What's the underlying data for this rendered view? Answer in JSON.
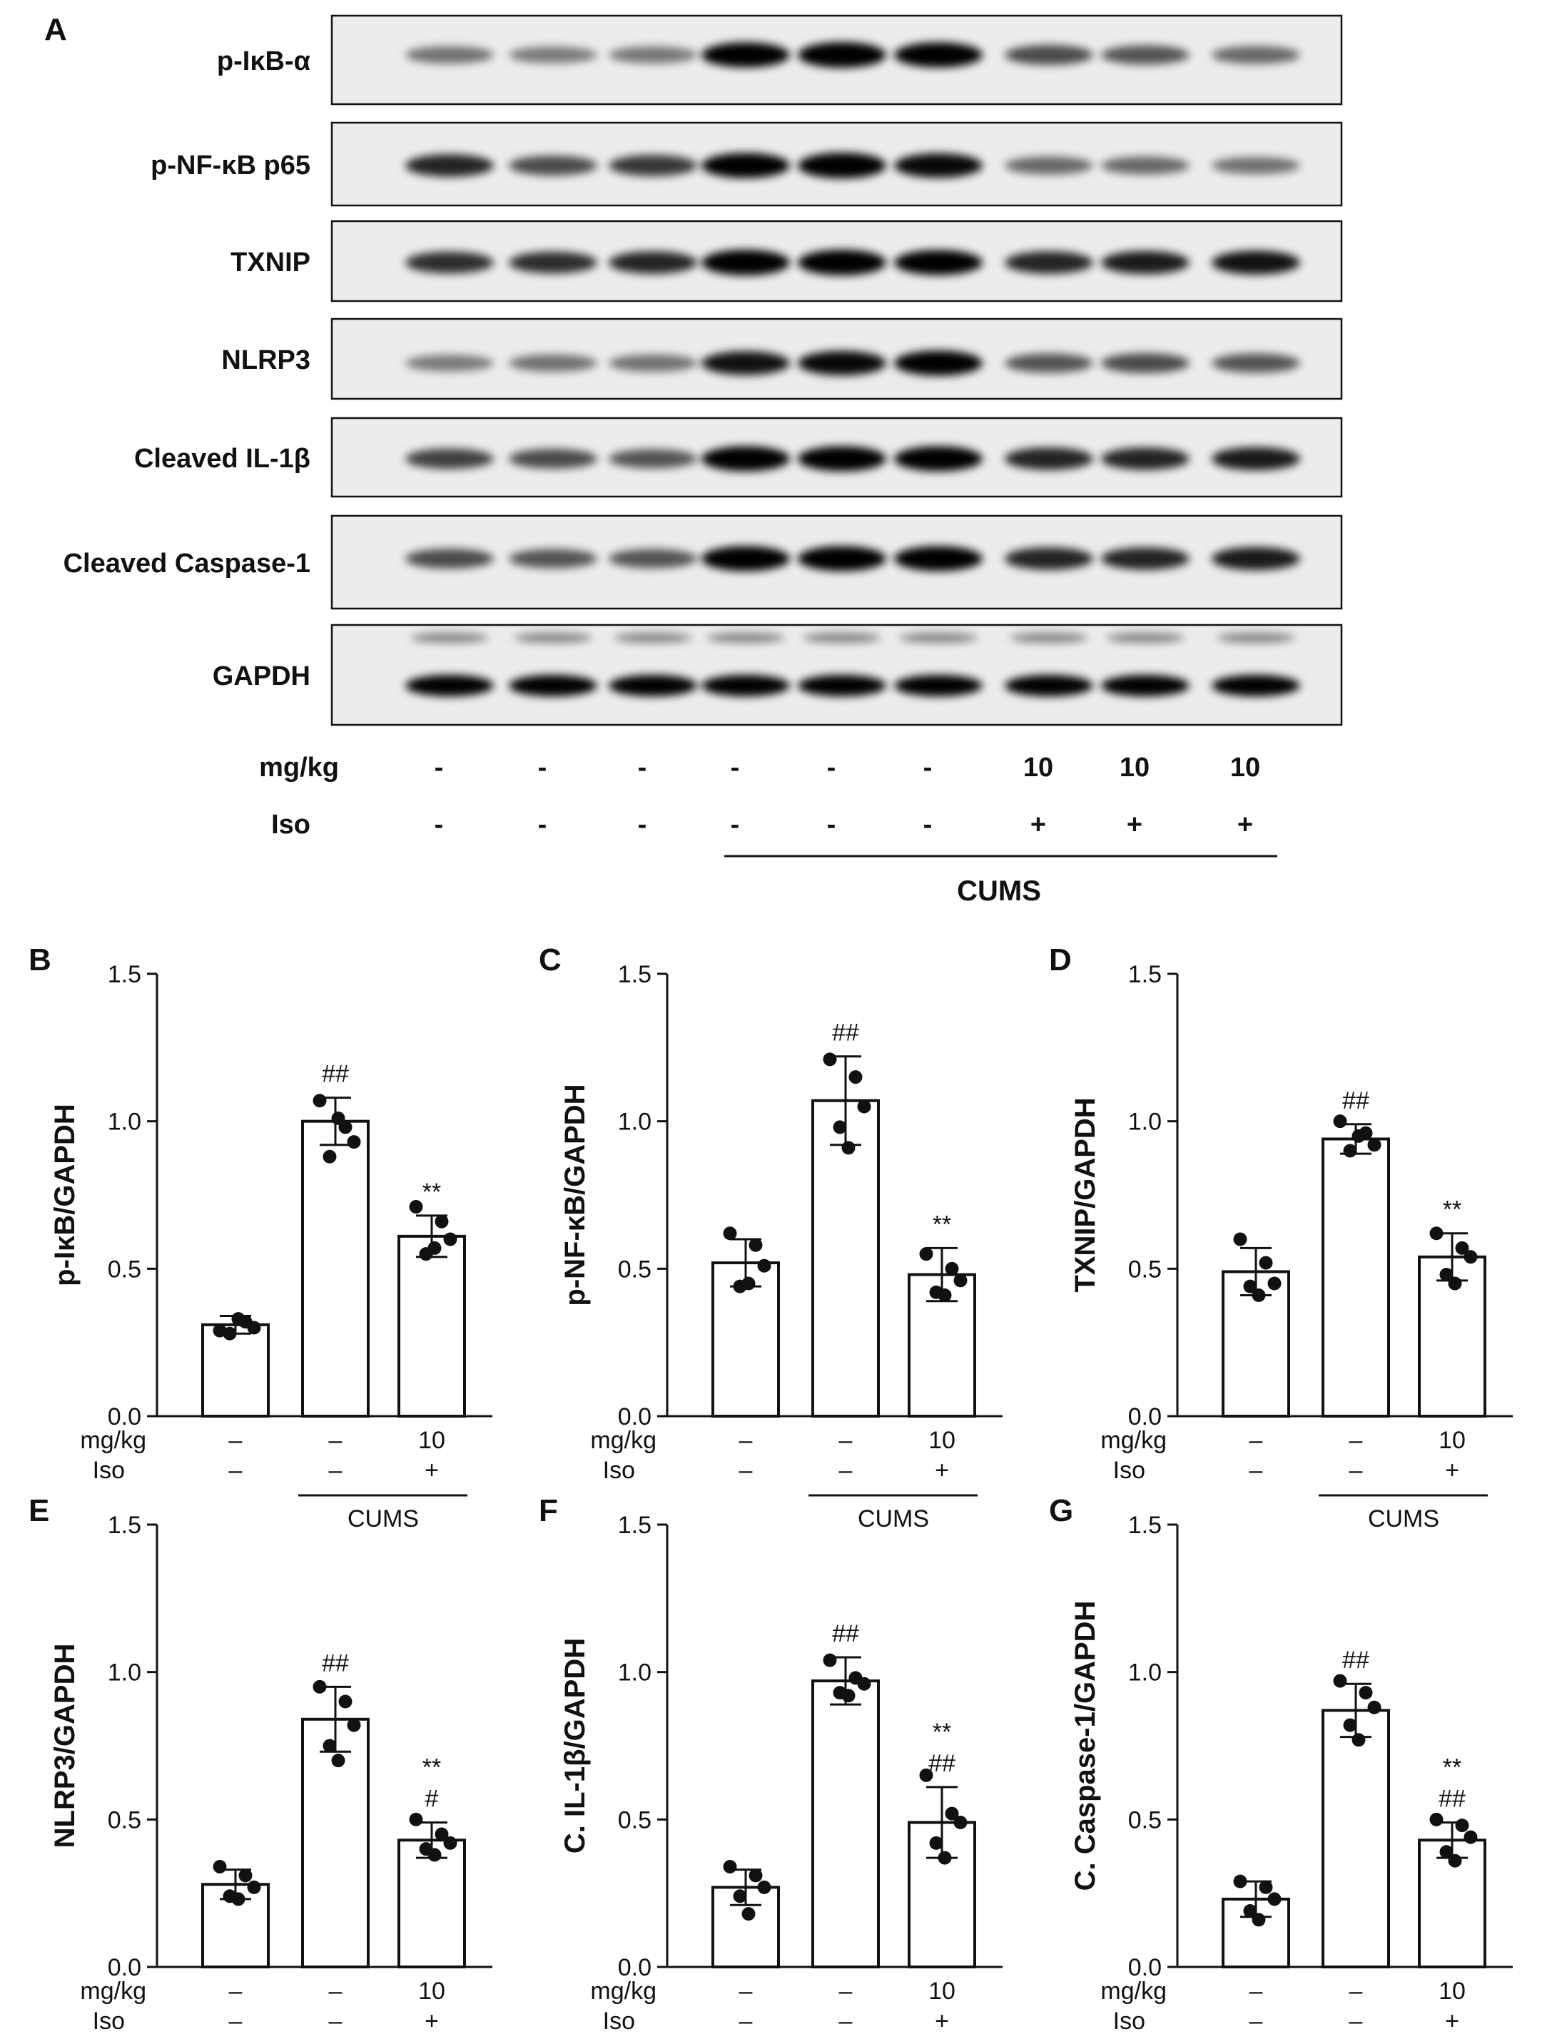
{
  "panel_letters": {
    "a": "A",
    "b": "B",
    "c": "C",
    "d": "D",
    "e": "E",
    "f": "F",
    "g": "G"
  },
  "blot": {
    "proteins": [
      "p-IκB-α",
      "p-NF-κB p65",
      "TXNIP",
      "NLRP3",
      "Cleaved IL-1β",
      "Cleaved Caspase-1",
      "GAPDH"
    ],
    "band_intensity": [
      [
        0.35,
        0.3,
        0.32,
        0.95,
        1.0,
        0.95,
        0.55,
        0.5,
        0.4
      ],
      [
        0.75,
        0.55,
        0.65,
        0.95,
        1.0,
        0.9,
        0.4,
        0.4,
        0.35
      ],
      [
        0.7,
        0.7,
        0.75,
        1.0,
        1.0,
        0.95,
        0.75,
        0.8,
        0.85
      ],
      [
        0.3,
        0.35,
        0.35,
        0.85,
        0.9,
        0.95,
        0.5,
        0.55,
        0.5
      ],
      [
        0.6,
        0.55,
        0.5,
        0.95,
        0.95,
        0.95,
        0.75,
        0.75,
        0.8
      ],
      [
        0.55,
        0.5,
        0.5,
        0.95,
        0.95,
        0.95,
        0.75,
        0.75,
        0.8
      ],
      [
        1.0,
        1.0,
        1.0,
        1.0,
        1.0,
        1.0,
        1.0,
        1.0,
        1.0
      ]
    ],
    "dose_label": "mg/kg",
    "iso_label": "Iso",
    "dose_values": [
      "-",
      "-",
      "-",
      "-",
      "-",
      "-",
      "10",
      "10",
      "10"
    ],
    "iso_values": [
      "-",
      "-",
      "-",
      "-",
      "-",
      "-",
      "+",
      "+",
      "+"
    ],
    "group_label": "CUMS"
  },
  "treatment": {
    "dose_label": "mg/kg",
    "iso_label": "Iso",
    "dose_values": [
      "–",
      "–",
      "10"
    ],
    "iso_values": [
      "–",
      "–",
      "+"
    ],
    "group_label": "CUMS"
  },
  "chart_data": [
    {
      "panel": "B",
      "type": "bar",
      "ylabel": "p-IκB/GAPDH",
      "ylim": [
        0,
        1.5
      ],
      "yticks": [
        "0.0",
        "0.5",
        "1.0",
        "1.5"
      ],
      "values": [
        0.31,
        1.0,
        0.61
      ],
      "errors": [
        0.03,
        0.08,
        0.07
      ],
      "points": [
        [
          0.29,
          0.32,
          0.3,
          0.28,
          0.33
        ],
        [
          1.07,
          0.98,
          0.93,
          0.88,
          1.01
        ],
        [
          0.71,
          0.66,
          0.6,
          0.55,
          0.57
        ]
      ],
      "annotations": [
        [],
        [
          "##"
        ],
        [
          "**"
        ]
      ]
    },
    {
      "panel": "C",
      "type": "bar",
      "ylabel": "p-NF-κB/GAPDH",
      "ylim": [
        0,
        1.5
      ],
      "yticks": [
        "0.0",
        "0.5",
        "1.0",
        "1.5"
      ],
      "values": [
        0.52,
        1.07,
        0.48
      ],
      "errors": [
        0.08,
        0.15,
        0.09
      ],
      "points": [
        [
          0.62,
          0.58,
          0.51,
          0.44,
          0.45
        ],
        [
          1.21,
          1.15,
          1.05,
          0.98,
          0.91
        ],
        [
          0.55,
          0.5,
          0.46,
          0.42,
          0.41
        ]
      ],
      "annotations": [
        [],
        [
          "##"
        ],
        [
          "**"
        ]
      ]
    },
    {
      "panel": "D",
      "type": "bar",
      "ylabel": "TXNIP/GAPDH",
      "ylim": [
        0,
        1.5
      ],
      "yticks": [
        "0.0",
        "0.5",
        "1.0",
        "1.5"
      ],
      "values": [
        0.49,
        0.94,
        0.54
      ],
      "errors": [
        0.08,
        0.05,
        0.08
      ],
      "points": [
        [
          0.6,
          0.52,
          0.45,
          0.44,
          0.41
        ],
        [
          1.0,
          0.96,
          0.92,
          0.9,
          0.95
        ],
        [
          0.62,
          0.57,
          0.54,
          0.48,
          0.45
        ]
      ],
      "annotations": [
        [],
        [
          "##"
        ],
        [
          "**"
        ]
      ]
    },
    {
      "panel": "E",
      "type": "bar",
      "ylabel": "NLRP3/GAPDH",
      "ylim": [
        0,
        1.5
      ],
      "yticks": [
        "0.0",
        "0.5",
        "1.0",
        "1.5"
      ],
      "values": [
        0.28,
        0.84,
        0.43
      ],
      "errors": [
        0.05,
        0.11,
        0.06
      ],
      "points": [
        [
          0.34,
          0.31,
          0.27,
          0.24,
          0.23
        ],
        [
          0.95,
          0.9,
          0.82,
          0.75,
          0.7
        ],
        [
          0.5,
          0.45,
          0.42,
          0.4,
          0.38
        ]
      ],
      "annotations": [
        [],
        [
          "##"
        ],
        [
          "#",
          "**"
        ]
      ]
    },
    {
      "panel": "F",
      "type": "bar",
      "ylabel": "C. IL-1β/GAPDH",
      "ylim": [
        0,
        1.5
      ],
      "yticks": [
        "0.0",
        "0.5",
        "1.0",
        "1.5"
      ],
      "values": [
        0.27,
        0.97,
        0.49
      ],
      "errors": [
        0.06,
        0.08,
        0.12
      ],
      "points": [
        [
          0.34,
          0.31,
          0.27,
          0.24,
          0.18
        ],
        [
          1.04,
          0.98,
          0.96,
          0.93,
          0.92
        ],
        [
          0.65,
          0.52,
          0.49,
          0.42,
          0.37
        ]
      ],
      "annotations": [
        [],
        [
          "##"
        ],
        [
          "##",
          "**"
        ]
      ]
    },
    {
      "panel": "G",
      "type": "bar",
      "ylabel": "C. Caspase-1/GAPDH",
      "ylim": [
        0,
        1.5
      ],
      "yticks": [
        "0.0",
        "0.5",
        "1.0",
        "1.5"
      ],
      "values": [
        0.23,
        0.87,
        0.43
      ],
      "errors": [
        0.06,
        0.09,
        0.06
      ],
      "points": [
        [
          0.29,
          0.27,
          0.23,
          0.19,
          0.16
        ],
        [
          0.97,
          0.93,
          0.88,
          0.82,
          0.77
        ],
        [
          0.5,
          0.48,
          0.44,
          0.39,
          0.36
        ]
      ],
      "annotations": [
        [],
        [
          "##"
        ],
        [
          "##",
          "**"
        ]
      ]
    }
  ]
}
